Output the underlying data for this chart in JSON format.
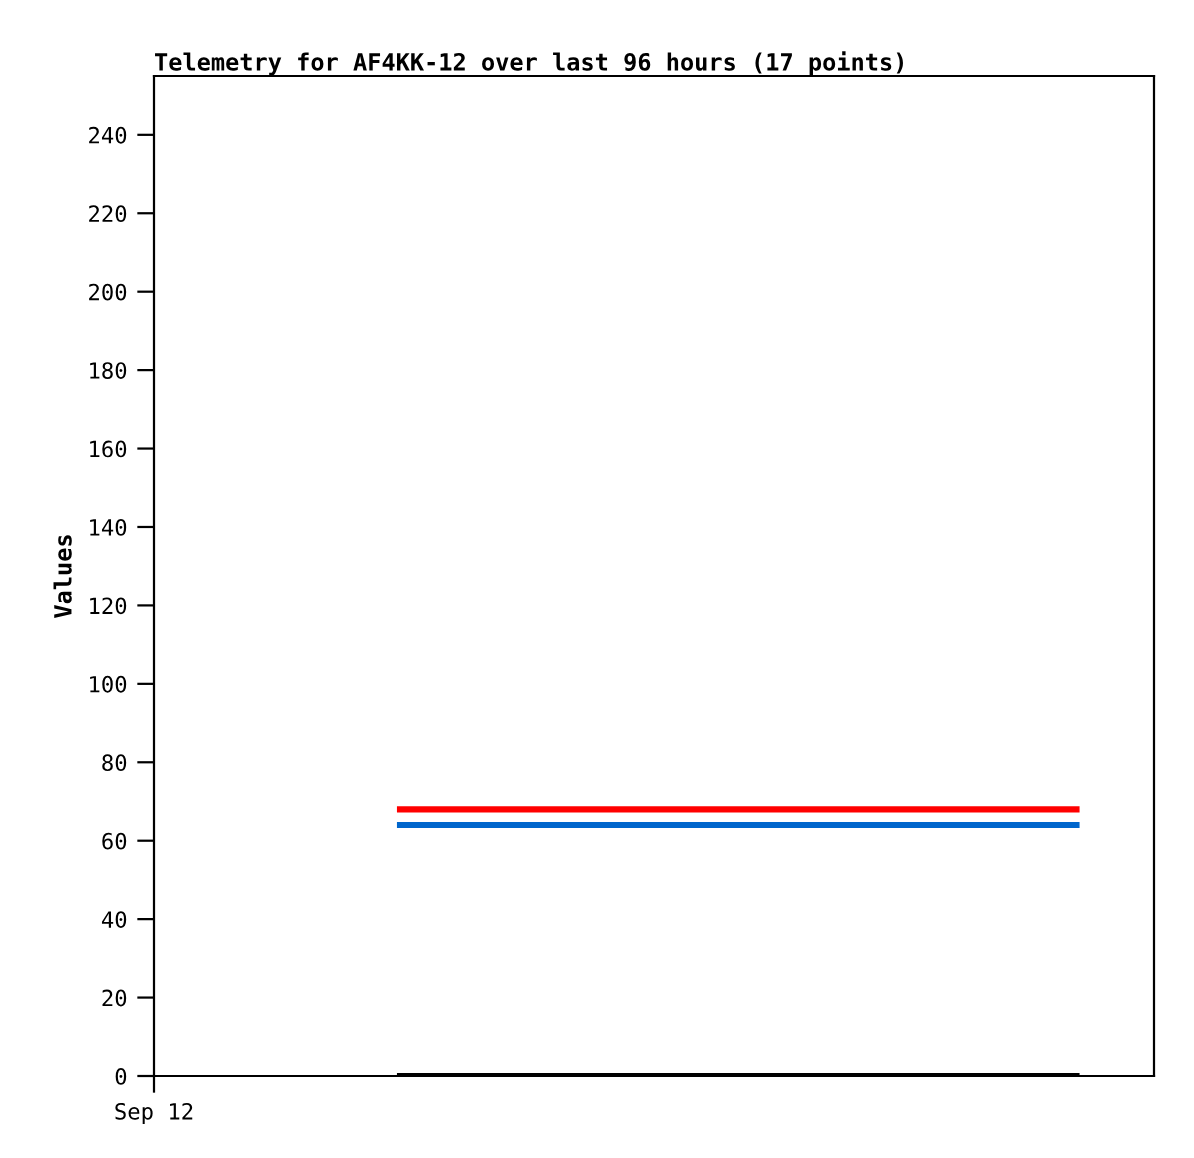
{
  "chart_data": {
    "type": "line",
    "title": "Telemetry for AF4KK-12 over last 96 hours (17 points)",
    "ylabel": "Values",
    "categories": [
      "Sep 12",
      null,
      null,
      null,
      null,
      null,
      null,
      null,
      null,
      null,
      null,
      null,
      null,
      null,
      null,
      null,
      null
    ],
    "ylim": [
      0,
      255
    ],
    "yticks": [
      0,
      20,
      40,
      60,
      80,
      100,
      120,
      140,
      160,
      180,
      200,
      220,
      240
    ],
    "series": [
      {
        "color": "#ff0000",
        "values": [
          null,
          null,
          null,
          null,
          68,
          68,
          68,
          68,
          68,
          68,
          68,
          68,
          68,
          68,
          68,
          68,
          null
        ]
      },
      {
        "color": "#0066cc",
        "values": [
          null,
          null,
          null,
          null,
          64,
          64,
          64,
          64,
          64,
          64,
          64,
          64,
          64,
          64,
          64,
          64,
          null
        ]
      },
      {
        "color": "#000000",
        "values": [
          null,
          null,
          null,
          null,
          0,
          0,
          0,
          0,
          0,
          0,
          0,
          0,
          0,
          0,
          0,
          0,
          null
        ]
      }
    ],
    "grid": false,
    "marker": "none",
    "line_style": "solid"
  }
}
